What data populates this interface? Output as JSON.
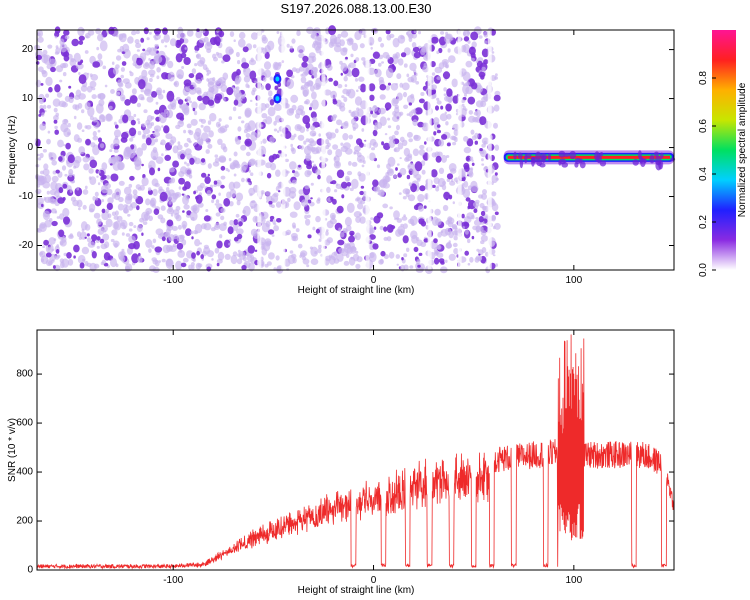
{
  "title": "S197.2026.088.13.00.E30",
  "colors": {
    "snr_line": "#ee2a2a",
    "noise_purple": "#7a30d6",
    "noise_light": "#c8b2ee"
  },
  "chart_data": [
    {
      "type": "heatmap",
      "xlabel": "Height of straight line (km)",
      "ylabel": "Frequency (Hz)",
      "xlim": [
        -168,
        150
      ],
      "ylim": [
        -25,
        24
      ],
      "xticks": [
        -100,
        0,
        100
      ],
      "yticks": [
        -20,
        -10,
        0,
        10,
        20
      ],
      "colorbar": {
        "label": "Normalized spectral amplitude",
        "range": [
          0,
          1
        ],
        "ticks": [
          0.0,
          0.2,
          0.4,
          0.6,
          0.8
        ],
        "tick_labels": [
          "0.0",
          "0.2",
          "0.4",
          "0.6",
          "0.8"
        ],
        "colors": [
          "#ffffff",
          "#8a2be2",
          "#2020ff",
          "#00d0ff",
          "#00e060",
          "#c8e600",
          "#ffb000",
          "#ff2020",
          "#ff1493"
        ]
      },
      "regions": [
        {
          "name": "noise",
          "x_range": [
            -168,
            62
          ],
          "freq_range": [
            -25,
            24
          ],
          "amplitude": 0.1
        },
        {
          "name": "signal",
          "x_range": [
            65,
            150
          ],
          "freq": -2,
          "amplitude": 0.9
        }
      ],
      "hotspots": [
        {
          "x": -48,
          "freq": 14,
          "amplitude": 0.35
        },
        {
          "x": -48,
          "freq": 10,
          "amplitude": 0.25
        }
      ]
    },
    {
      "type": "line",
      "xlabel": "Height of straight line (km)",
      "ylabel": "SNR (10 * v/v)",
      "xlim": [
        -168,
        150
      ],
      "ylim": [
        0,
        980
      ],
      "xticks": [
        -100,
        0,
        100
      ],
      "yticks": [
        0,
        200,
        400,
        600,
        800
      ],
      "envelope": {
        "x": [
          -168,
          -120,
          -100,
          -85,
          -75,
          -60,
          -45,
          -30,
          -15,
          -5,
          5,
          15,
          25,
          35,
          45,
          55,
          65,
          75,
          85,
          95,
          100,
          110,
          120,
          130,
          135,
          145,
          150
        ],
        "y": [
          15,
          15,
          15,
          25,
          80,
          150,
          210,
          260,
          320,
          330,
          340,
          390,
          420,
          440,
          450,
          450,
          455,
          465,
          475,
          480,
          470,
          470,
          470,
          470,
          470,
          430,
          260
        ]
      },
      "dropouts": [
        -10,
        5,
        17,
        28,
        39,
        50,
        59,
        70,
        86,
        93,
        130,
        145
      ],
      "burst": {
        "x_range": [
          92,
          105
        ],
        "peak": 980,
        "low": 120
      }
    }
  ]
}
